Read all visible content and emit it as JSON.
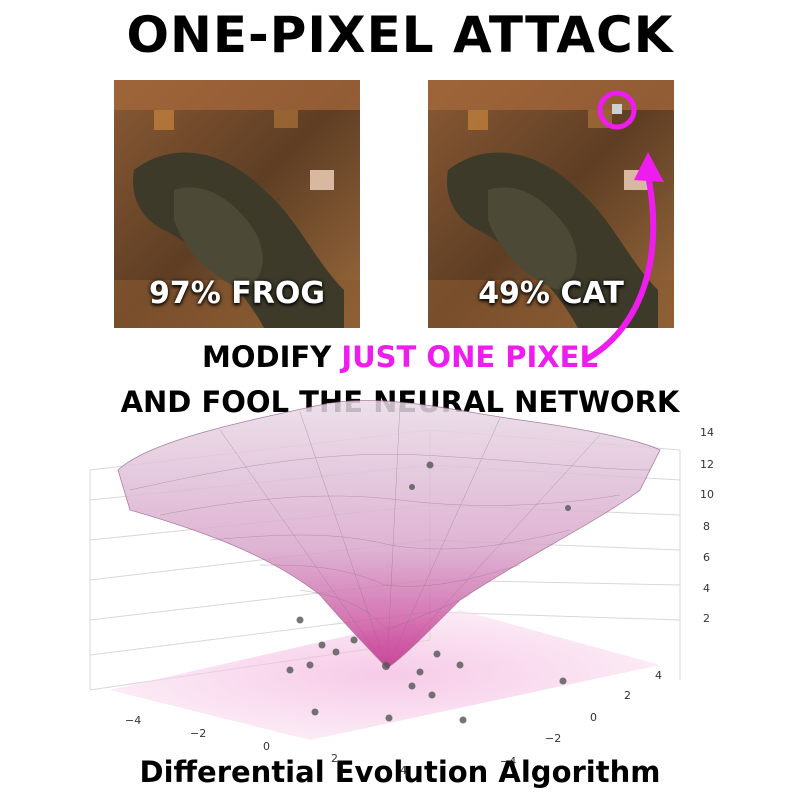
{
  "title": "ONE-PIXEL ATTACK",
  "panels": [
    {
      "label": "97% FROG"
    },
    {
      "label": "49% CAT"
    }
  ],
  "caption": {
    "prefix": "MODIFY ",
    "highlight": "JUST ONE PIXEL",
    "line2": "AND FOOL THE NEURAL NETWORK"
  },
  "footer": "Differential Evolution Algorithm",
  "colors": {
    "highlight": "#ee1cee",
    "surface": "#d24aa0",
    "title": "#000000"
  },
  "plot": {
    "z_ticks": [
      "2",
      "4",
      "6",
      "8",
      "10",
      "12",
      "14"
    ],
    "x_ticks": [
      "−4",
      "−2",
      "0",
      "2",
      "4"
    ],
    "y_ticks": [
      "4",
      "2",
      "0",
      "−2",
      "−4"
    ]
  }
}
